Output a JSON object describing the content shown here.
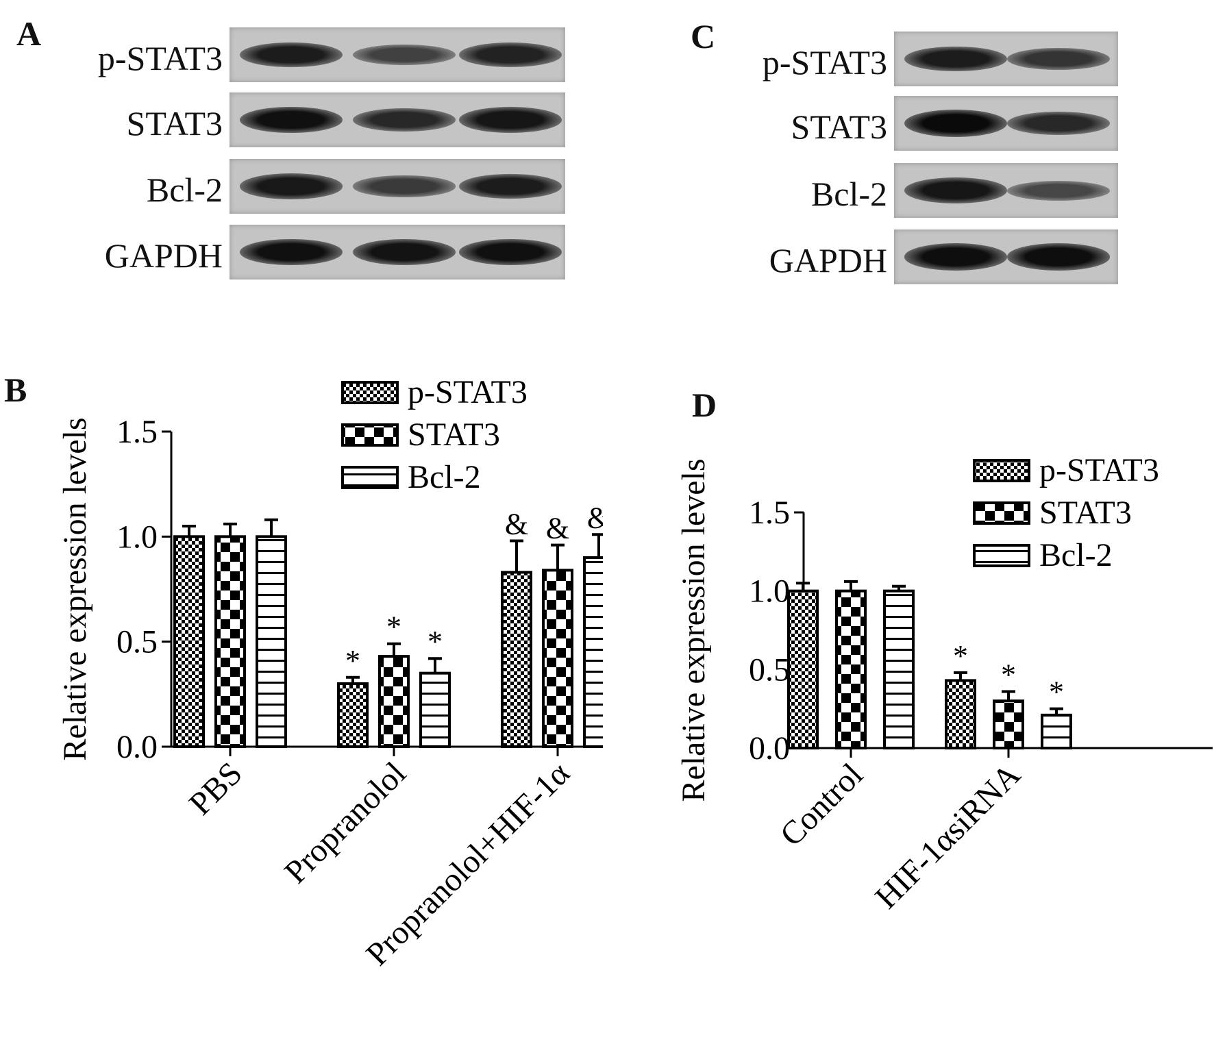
{
  "panels": {
    "A": {
      "letter": "A",
      "rows": [
        {
          "label": "p-STAT3",
          "intensities": [
            0.85,
            0.55,
            0.8
          ]
        },
        {
          "label": "STAT3",
          "intensities": [
            0.95,
            0.75,
            0.9
          ]
        },
        {
          "label": "Bcl-2",
          "intensities": [
            0.88,
            0.6,
            0.85
          ]
        },
        {
          "label": "GAPDH",
          "intensities": [
            0.95,
            0.93,
            0.95
          ]
        }
      ]
    },
    "C": {
      "letter": "C",
      "rows": [
        {
          "label": "p-STAT3",
          "intensities": [
            0.85,
            0.65
          ]
        },
        {
          "label": "STAT3",
          "intensities": [
            1.0,
            0.75
          ]
        },
        {
          "label": "Bcl-2",
          "intensities": [
            0.9,
            0.5
          ]
        },
        {
          "label": "GAPDH",
          "intensities": [
            0.97,
            0.97
          ]
        }
      ]
    },
    "B": {
      "letter": "B"
    },
    "D": {
      "letter": "D"
    }
  },
  "chart_data": [
    {
      "panel": "B",
      "type": "bar",
      "ylabel": "Relative expression levels",
      "xlabel": "",
      "ylim": [
        0,
        1.5
      ],
      "yticks": [
        "0.0",
        "0.5",
        "1.0",
        "1.5"
      ],
      "categories": [
        "PBS",
        "Propranolol",
        "Propranolol+HIF-1α"
      ],
      "series": [
        {
          "name": "p-STAT3",
          "pattern": "checker-fine",
          "values": [
            1.0,
            0.3,
            0.83
          ],
          "errors": [
            0.05,
            0.03,
            0.15
          ]
        },
        {
          "name": "STAT3",
          "pattern": "checker-large",
          "values": [
            1.0,
            0.43,
            0.84
          ],
          "errors": [
            0.06,
            0.06,
            0.12
          ]
        },
        {
          "name": "Bcl-2",
          "pattern": "horizontal-lines",
          "values": [
            1.0,
            0.35,
            0.9
          ],
          "errors": [
            0.08,
            0.07,
            0.11
          ]
        }
      ],
      "annotations": [
        [
          "",
          "",
          ""
        ],
        [
          "*",
          "*",
          "*"
        ],
        [
          "&",
          "&",
          "&"
        ]
      ],
      "legend_position": "top-right"
    },
    {
      "panel": "D",
      "type": "bar",
      "ylabel": "Relative expression levels",
      "xlabel": "",
      "ylim": [
        0,
        1.5
      ],
      "yticks": [
        "0.0",
        "0.5",
        "1.0",
        "1.5"
      ],
      "categories": [
        "Control",
        "HIF-1αsiRNA"
      ],
      "series": [
        {
          "name": "p-STAT3",
          "pattern": "checker-fine",
          "values": [
            1.0,
            0.43
          ],
          "errors": [
            0.05,
            0.05
          ]
        },
        {
          "name": "STAT3",
          "pattern": "checker-large",
          "values": [
            1.0,
            0.3
          ],
          "errors": [
            0.06,
            0.06
          ]
        },
        {
          "name": "Bcl-2",
          "pattern": "horizontal-lines",
          "values": [
            1.0,
            0.21
          ],
          "errors": [
            0.03,
            0.04
          ]
        }
      ],
      "annotations": [
        [
          "",
          "",
          ""
        ],
        [
          "*",
          "*",
          "*"
        ]
      ],
      "legend_position": "top-right"
    }
  ]
}
